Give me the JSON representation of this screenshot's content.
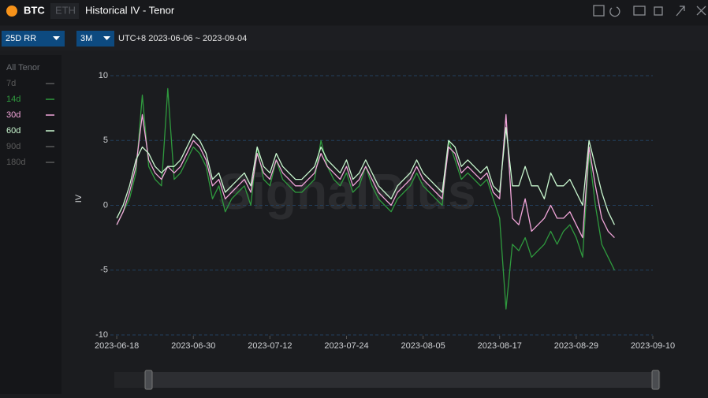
{
  "ui": {
    "assets": [
      "BTC",
      "ETH"
    ],
    "metric": "25D RR",
    "period": "3M",
    "range": "UTC+8 2023-06-06 ~ 2023-09-04"
  },
  "chart_data": {
    "type": "line",
    "title": "Historical IV - Tenor",
    "y_label": "IV",
    "watermark": "SignalPlus",
    "legend_title": "All Tenor",
    "grid": true,
    "xlim": [
      "2023-06-17",
      "2023-09-10"
    ],
    "xticks": [
      "2023-06-18",
      "2023-06-30",
      "2023-07-12",
      "2023-07-24",
      "2023-08-05",
      "2023-08-17",
      "2023-08-29",
      "2023-09-10"
    ],
    "ylim": [
      -10,
      10
    ],
    "yticks": [
      10,
      5,
      0,
      -5,
      -10
    ],
    "x": [
      "2023-06-18",
      "2023-06-19",
      "2023-06-20",
      "2023-06-21",
      "2023-06-22",
      "2023-06-23",
      "2023-06-24",
      "2023-06-25",
      "2023-06-26",
      "2023-06-27",
      "2023-06-28",
      "2023-06-29",
      "2023-06-30",
      "2023-07-01",
      "2023-07-02",
      "2023-07-03",
      "2023-07-04",
      "2023-07-05",
      "2023-07-06",
      "2023-07-07",
      "2023-07-08",
      "2023-07-09",
      "2023-07-10",
      "2023-07-11",
      "2023-07-12",
      "2023-07-13",
      "2023-07-14",
      "2023-07-15",
      "2023-07-16",
      "2023-07-17",
      "2023-07-18",
      "2023-07-19",
      "2023-07-20",
      "2023-07-21",
      "2023-07-22",
      "2023-07-23",
      "2023-07-24",
      "2023-07-25",
      "2023-07-26",
      "2023-07-27",
      "2023-07-28",
      "2023-07-29",
      "2023-07-30",
      "2023-07-31",
      "2023-08-01",
      "2023-08-02",
      "2023-08-03",
      "2023-08-04",
      "2023-08-05",
      "2023-08-06",
      "2023-08-07",
      "2023-08-08",
      "2023-08-09",
      "2023-08-10",
      "2023-08-11",
      "2023-08-12",
      "2023-08-13",
      "2023-08-14",
      "2023-08-15",
      "2023-08-16",
      "2023-08-17",
      "2023-08-18",
      "2023-08-19",
      "2023-08-20",
      "2023-08-21",
      "2023-08-22",
      "2023-08-23",
      "2023-08-24",
      "2023-08-25",
      "2023-08-26",
      "2023-08-27",
      "2023-08-28",
      "2023-08-29",
      "2023-08-30",
      "2023-08-31",
      "2023-09-01",
      "2023-09-02",
      "2023-09-03",
      "2023-09-04"
    ],
    "series": [
      {
        "name": "7d",
        "color": "#5a5a5a",
        "visible": false
      },
      {
        "name": "14d",
        "color": "#2f9a3e",
        "visible": true,
        "values": [
          -1.5,
          -0.5,
          0.5,
          2.5,
          8.5,
          3,
          2,
          1.5,
          9,
          2,
          2.5,
          3.5,
          4.5,
          4,
          3,
          0.5,
          1.5,
          -0.5,
          0.5,
          1,
          1.5,
          0,
          4.5,
          2,
          1.5,
          3.5,
          2,
          1.5,
          1,
          1,
          1.5,
          2,
          5,
          3,
          2,
          1.5,
          2.5,
          1,
          1.5,
          3,
          1.5,
          0.5,
          0,
          -0.5,
          0.5,
          1,
          1.5,
          2.5,
          1.5,
          1,
          0.5,
          0,
          5,
          3.5,
          2,
          2.5,
          2,
          1.5,
          2,
          0.5,
          -1,
          -8,
          -3,
          -3.5,
          -2.5,
          -4,
          -3.5,
          -3,
          -2,
          -3,
          -2,
          -1.5,
          -2.5,
          -4,
          4,
          0,
          -3,
          -4,
          -5
        ]
      },
      {
        "name": "30d",
        "color": "#f2a6da",
        "visible": true,
        "values": [
          -1.5,
          -0.5,
          1,
          3,
          7,
          3.5,
          2.5,
          2,
          3,
          2.5,
          3,
          4,
          5,
          4.5,
          3.5,
          1.5,
          2,
          0.5,
          1,
          1.5,
          2,
          1,
          4,
          2.5,
          2,
          3.5,
          2.5,
          2,
          1.5,
          1.5,
          2,
          2.5,
          4,
          3,
          2.5,
          2,
          3,
          1.5,
          2,
          3,
          2,
          1,
          0.5,
          0,
          1,
          1.5,
          2,
          3,
          2,
          1.5,
          1,
          0.5,
          4.5,
          4,
          2.5,
          3,
          2.5,
          2,
          2.5,
          1,
          0.5,
          7,
          -1,
          -1.5,
          0.5,
          -2,
          -1.5,
          -1,
          0,
          -1,
          -1,
          -0.5,
          -1.5,
          -2.5,
          4.5,
          1.5,
          -1,
          -2,
          -2.5
        ]
      },
      {
        "name": "60d",
        "color": "#c9f7cf",
        "visible": true,
        "values": [
          -1,
          0,
          1.5,
          3.5,
          4.5,
          4,
          3,
          2.5,
          3,
          3,
          3.5,
          4.5,
          5.5,
          5,
          4,
          2,
          2.5,
          1,
          1.5,
          2,
          2.5,
          1.5,
          4.5,
          3,
          2.5,
          4,
          3,
          2.5,
          2,
          2,
          2.5,
          3,
          4.5,
          3.5,
          3,
          2.5,
          3.5,
          2,
          2.5,
          3.5,
          2.5,
          1.5,
          1,
          0.5,
          1.5,
          2,
          2.5,
          3.5,
          2.5,
          2,
          1.5,
          1,
          5,
          4.5,
          3,
          3.5,
          3,
          2.5,
          3,
          1.5,
          1,
          6,
          1.5,
          1.5,
          3,
          1.5,
          1.5,
          0.5,
          2.5,
          1.5,
          1.5,
          2,
          1,
          0,
          5,
          3,
          1,
          -0.5,
          -1.5
        ]
      },
      {
        "name": "90d",
        "color": "#5a5a5a",
        "visible": false
      },
      {
        "name": "180d",
        "color": "#5a5a5a",
        "visible": false
      }
    ]
  }
}
